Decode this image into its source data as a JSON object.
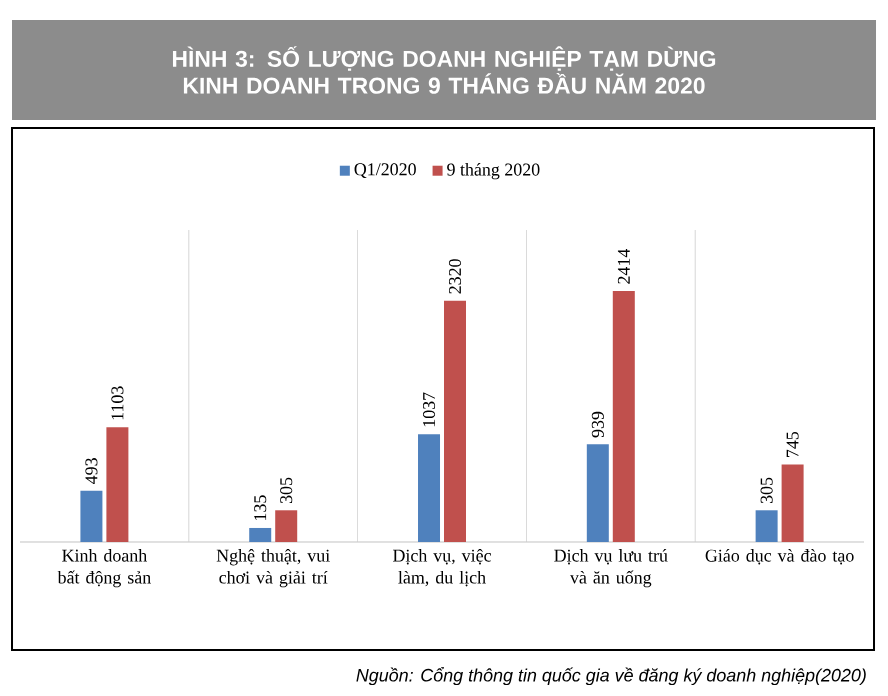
{
  "chart_data": {
    "type": "bar",
    "title": "HÌNH 3: SỐ LƯỢNG DOANH NGHIỆP TẠM DỪNG KINH DOANH TRONG 9 THÁNG ĐẦU NĂM 2020",
    "categories": [
      "Kinh doanh bất động sản",
      "Nghệ thuật, vui chơi và giải trí",
      "Dịch vụ, việc làm, du lịch",
      "Dịch vụ lưu trú và ăn uống",
      "Giáo dục và đào tạo"
    ],
    "series": [
      {
        "name": "Q1/2020",
        "color": "#4f81bd",
        "values": [
          493,
          135,
          1037,
          939,
          305
        ]
      },
      {
        "name": "9 tháng 2020",
        "color": "#c0504d",
        "values": [
          1103,
          305,
          2320,
          2414,
          745
        ]
      }
    ],
    "ylim": [
      0,
      3000
    ],
    "tick_labels": "x",
    "data_labels": true,
    "legend": "top",
    "grid": false,
    "annotations": [
      "Nguồn: Cổng thông tin quốc gia về đăng ký doanh nghiệp(2020)"
    ]
  }
}
